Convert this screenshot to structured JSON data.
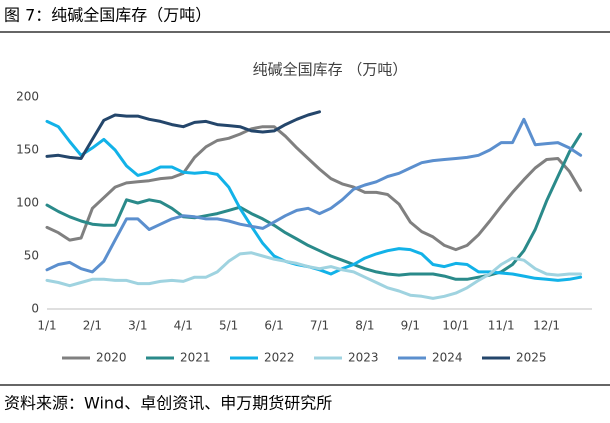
{
  "header": {
    "title": "图 7：纯碱全国库存（万吨）"
  },
  "chart_data": {
    "type": "line",
    "title": "纯碱全国库存 （万吨）",
    "categories": [
      "1/1",
      null,
      null,
      null,
      "2/1",
      null,
      null,
      null,
      "3/1",
      null,
      null,
      null,
      "4/1",
      null,
      null,
      null,
      "5/1",
      null,
      null,
      null,
      "6/1",
      null,
      null,
      null,
      "7/1",
      null,
      null,
      null,
      "8/1",
      null,
      null,
      null,
      "9/1",
      null,
      null,
      null,
      "10/1",
      null,
      null,
      null,
      "11/1",
      null,
      null,
      null,
      "12/1",
      null,
      null,
      null
    ],
    "series": [
      {
        "name": "2020",
        "color": "#808080",
        "values": [
          77,
          72,
          65,
          67,
          95,
          105,
          115,
          119,
          120,
          121,
          123,
          124,
          128,
          143,
          153,
          159,
          161,
          165,
          170,
          172,
          172,
          163,
          152,
          142,
          132,
          123,
          118,
          115,
          110,
          110,
          108,
          99,
          82,
          73,
          68,
          60,
          56,
          60,
          70,
          83,
          97,
          110,
          122,
          133,
          141,
          142,
          130,
          112
        ]
      },
      {
        "name": "2021",
        "color": "#2a8a8a",
        "values": [
          98,
          92,
          87,
          83,
          80,
          79,
          79,
          103,
          100,
          103,
          101,
          95,
          87,
          86,
          88,
          90,
          93,
          96,
          90,
          85,
          79,
          72,
          66,
          60,
          55,
          50,
          46,
          42,
          38,
          35,
          33,
          32,
          33,
          33,
          33,
          31,
          28,
          28,
          30,
          32,
          35,
          42,
          55,
          75,
          102,
          125,
          148,
          165
        ]
      },
      {
        "name": "2022",
        "color": "#12b2e8",
        "values": [
          177,
          172,
          158,
          145,
          152,
          160,
          150,
          135,
          126,
          129,
          134,
          134,
          129,
          128,
          129,
          127,
          115,
          95,
          78,
          62,
          50,
          45,
          42,
          40,
          37,
          33,
          38,
          42,
          48,
          52,
          55,
          57,
          56,
          52,
          42,
          40,
          43,
          42,
          35,
          35,
          34,
          33,
          31,
          29,
          28,
          27,
          28,
          30
        ]
      },
      {
        "name": "2023",
        "color": "#9fd3e0",
        "values": [
          27,
          25,
          22,
          25,
          28,
          28,
          27,
          27,
          24,
          24,
          26,
          27,
          26,
          30,
          30,
          35,
          45,
          52,
          53,
          50,
          47,
          45,
          43,
          40,
          38,
          40,
          37,
          35,
          30,
          25,
          20,
          17,
          13,
          12,
          10,
          12,
          15,
          20,
          27,
          33,
          42,
          48,
          46,
          38,
          33,
          32,
          33,
          33
        ]
      },
      {
        "name": "2024",
        "color": "#5b8fce",
        "values": [
          37,
          42,
          44,
          38,
          35,
          45,
          65,
          85,
          85,
          75,
          80,
          85,
          88,
          87,
          85,
          85,
          83,
          80,
          78,
          76,
          82,
          88,
          93,
          95,
          90,
          95,
          103,
          113,
          117,
          120,
          125,
          128,
          133,
          138,
          140,
          141,
          142,
          143,
          145,
          150,
          157,
          157,
          179,
          155,
          156,
          157,
          152,
          145
        ]
      },
      {
        "name": "2025",
        "color": "#24466b",
        "values": [
          144,
          145,
          143,
          142,
          160,
          178,
          183,
          182,
          182,
          179,
          177,
          174,
          172,
          176,
          177,
          174,
          173,
          172,
          168,
          167,
          168,
          174,
          179,
          183,
          186,
          null,
          null,
          null,
          null,
          null,
          null,
          null,
          null,
          null,
          null,
          null,
          null,
          null,
          null,
          null,
          null,
          null,
          null,
          null,
          null,
          null,
          null,
          null
        ]
      }
    ],
    "ylim": [
      0,
      200
    ],
    "yticks": [
      0,
      50,
      100,
      150,
      200
    ],
    "grid": false,
    "legend": "bottom"
  },
  "footer": {
    "source": "资料来源：Wind、卓创资讯、申万期货研究所"
  }
}
